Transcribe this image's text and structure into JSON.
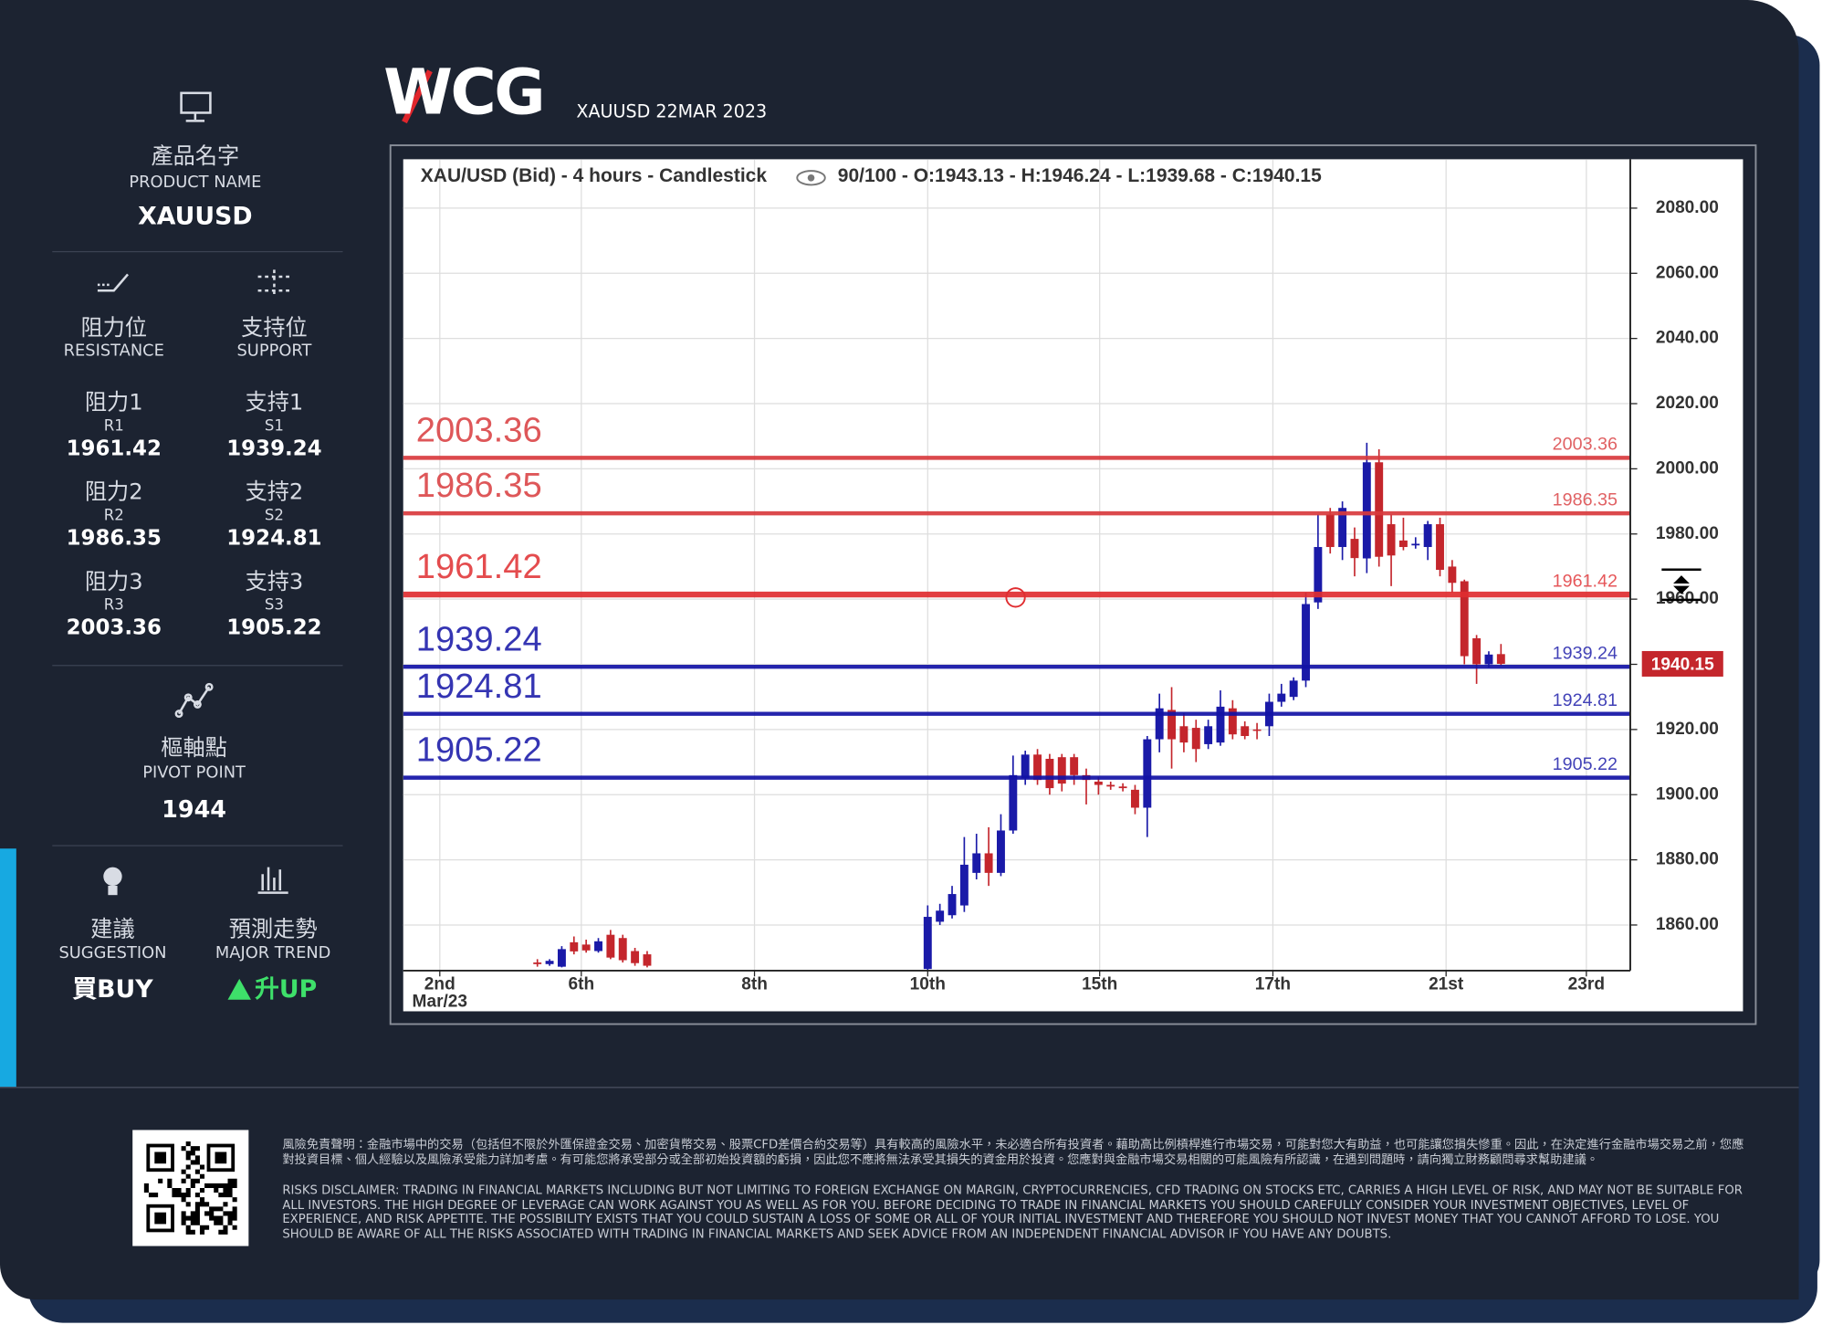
{
  "header": {
    "logo": "WCG",
    "subtitle": "XAUUSD 22MAR 2023"
  },
  "product": {
    "label_zh": "產品名字",
    "label_en": "PRODUCT NAME",
    "value": "XAUUSD"
  },
  "resistance": {
    "label_zh": "阻力位",
    "label_en": "RESISTANCE",
    "items": [
      {
        "label_zh": "阻力1",
        "code": "R1",
        "value": "1961.42"
      },
      {
        "label_zh": "阻力2",
        "code": "R2",
        "value": "1986.35"
      },
      {
        "label_zh": "阻力3",
        "code": "R3",
        "value": "2003.36"
      }
    ]
  },
  "support": {
    "label_zh": "支持位",
    "label_en": "SUPPORT",
    "items": [
      {
        "label_zh": "支持1",
        "code": "S1",
        "value": "1939.24"
      },
      {
        "label_zh": "支持2",
        "code": "S2",
        "value": "1924.81"
      },
      {
        "label_zh": "支持3",
        "code": "S3",
        "value": "1905.22"
      }
    ]
  },
  "pivot": {
    "label_zh": "樞軸點",
    "label_en": "PIVOT POINT",
    "value": "1944"
  },
  "suggestion": {
    "label_zh": "建議",
    "label_en": "SUGGESTION",
    "value": "買BUY"
  },
  "trend": {
    "label_zh": "預測走勢",
    "label_en": "MAJOR TREND",
    "value": "升UP"
  },
  "disclaimer": {
    "zh": "風險免責聲明：金融市場中的交易（包括但不限於外匯保證金交易、加密貨幣交易、股票CFD差價合約交易等）具有較高的風險水平，未必適合所有投資者。藉助高比例槓桿進行市場交易，可能對您大有助益，也可能讓您損失慘重。因此，在決定進行金融市場交易之前，您應對投資目標、個人經驗以及風險承受能力詳加考慮。有可能您將承受部分或全部初始投資額的虧損，因此您不應將無法承受其損失的資金用於投資。您應對與金融市場交易相關的可能風險有所認識，在遇到問題時，請向獨立財務顧問尋求幫助建議。",
    "en": "RISKS DISCLAIMER: TRADING IN FINANCIAL MARKETS INCLUDING BUT NOT LIMITING TO FOREIGN EXCHANGE ON MARGIN, CRYPTOCURRENCIES, CFD TRADING ON STOCKS ETC, CARRIES A HIGH LEVEL OF RISK, AND MAY NOT BE SUITABLE FOR ALL INVESTORS. THE HIGH DEGREE OF LEVERAGE CAN WORK AGAINST YOU AS WELL AS FOR YOU. BEFORE DECIDING TO TRADE IN FINANCIAL MARKETS YOU SHOULD CAREFULLY CONSIDER YOUR INVESTMENT OBJECTIVES, LEVEL OF EXPERIENCE, AND RISK APPETITE. THE POSSIBILITY EXISTS THAT YOU COULD SUSTAIN A LOSS OF SOME OR ALL OF YOUR INITIAL INVESTMENT AND THEREFORE YOU SHOULD NOT INVEST MONEY THAT YOU CANNOT AFFORD TO LOSE. YOU SHOULD BE AWARE OF ALL THE RISKS ASSOCIATED WITH TRADING IN FINANCIAL MARKETS AND SEEK ADVICE FROM AN INDEPENDENT FINANCIAL ADVISOR IF YOU HAVE ANY DOUBTS."
  },
  "chart_data": {
    "type": "candlestick",
    "title": "XAU/USD (Bid) - 4 hours - Candlestick",
    "subtitle": "90/100 - O:1943.13 - H:1946.24 - L:1939.68 - C:1940.15",
    "up_color": "#1a1aa8",
    "down_color": "#c4262c",
    "grid": true,
    "xlim": [
      0,
      100.6
    ],
    "xticks": [
      {
        "value": 3,
        "label": "2nd\nMar/23"
      },
      {
        "value": 14.6,
        "label": "6th"
      },
      {
        "value": 28.8,
        "label": "8th"
      },
      {
        "value": 43,
        "label": "10th"
      },
      {
        "value": 57.1,
        "label": "15th"
      },
      {
        "value": 71.3,
        "label": "17th"
      },
      {
        "value": 85.5,
        "label": "21st"
      },
      {
        "value": 97,
        "label": "23rd"
      }
    ],
    "ylim": [
      1846,
      2095
    ],
    "yticks": [
      {
        "value": 1860,
        "label": "1860.00"
      },
      {
        "value": 1880,
        "label": "1880.00"
      },
      {
        "value": 1900,
        "label": "1900.00"
      },
      {
        "value": 1920,
        "label": "1920.00"
      },
      {
        "value": 1940,
        "label": "1940.00"
      },
      {
        "value": 1960,
        "label": "1960.00"
      },
      {
        "value": 1980,
        "label": "1980.00"
      },
      {
        "value": 2000,
        "label": "2000.00"
      },
      {
        "value": 2020,
        "label": "2020.00"
      },
      {
        "value": 2040,
        "label": "2040.00"
      },
      {
        "value": 2060,
        "label": "2060.00"
      },
      {
        "value": 2080,
        "label": "2080.00"
      }
    ],
    "levels": [
      {
        "value": 2003.36,
        "color": "#d93a3d"
      },
      {
        "value": 1986.35,
        "color": "#d93a3d"
      },
      {
        "value": 1961.42,
        "color": "#e02d30"
      },
      {
        "value": 1939.24,
        "color": "#1212a6"
      },
      {
        "value": 1924.81,
        "color": "#1212a6"
      },
      {
        "value": 1905.22,
        "color": "#1212a6"
      }
    ],
    "x": [
      11,
      12,
      13,
      14,
      15,
      16,
      17,
      18,
      19,
      20,
      43,
      44,
      45,
      46,
      47,
      48,
      49,
      50,
      51,
      52,
      53,
      54,
      55,
      56,
      57,
      58,
      59,
      60,
      61,
      62,
      63,
      64,
      65,
      66,
      67,
      68,
      69,
      70,
      71,
      72,
      73,
      74,
      75,
      76,
      77,
      78,
      79,
      80,
      81,
      82,
      83,
      84,
      85,
      86,
      87,
      88,
      89,
      90
    ],
    "open": [
      1848.5,
      1848,
      1847.2,
      1854.7,
      1854,
      1852,
      1857,
      1856,
      1852,
      1851,
      1846.5,
      1861,
      1863,
      1866,
      1876,
      1882,
      1876,
      1889,
      1905,
      1912.3,
      1911,
      1911.5,
      1911.5,
      1906,
      1904,
      1903,
      1902.5,
      1901.5,
      1896,
      1917,
      1926,
      1921,
      1920.5,
      1915.5,
      1916,
      1926.5,
      1921,
      1920,
      1921,
      1928.5,
      1930,
      1935,
      1959,
      1986,
      1976,
      1978.5,
      1972.5,
      2002,
      1983,
      1978,
      1976.5,
      1976,
      1983,
      1970,
      1965.5,
      1948,
      1940,
      1943.13
    ],
    "high": [
      1849.5,
      1849.5,
      1853.5,
      1856.5,
      1855.5,
      1856,
      1858.5,
      1857,
      1853,
      1852,
      1866,
      1866.5,
      1872,
      1887,
      1888,
      1890,
      1894,
      1912,
      1913.5,
      1914,
      1912.5,
      1912.5,
      1912.5,
      1908,
      1905.5,
      1904,
      1903.5,
      1903,
      1918,
      1931,
      1933,
      1925,
      1923,
      1923,
      1932,
      1929,
      1922.5,
      1922,
      1931,
      1934,
      1936,
      1962,
      1986,
      1988,
      1990,
      1982,
      2008,
      2006,
      1986,
      1985,
      1979,
      1984,
      1985,
      1972,
      1966,
      1949,
      1944,
      1946.24
    ],
    "low": [
      1847.2,
      1847.5,
      1847,
      1851,
      1851.5,
      1851.5,
      1849.5,
      1848.5,
      1847.5,
      1847,
      1846.2,
      1860,
      1862,
      1864,
      1874,
      1872,
      1875,
      1888,
      1903,
      1903,
      1900,
      1901,
      1903,
      1897,
      1900,
      1901.5,
      1901,
      1894,
      1887,
      1913,
      1908,
      1913,
      1910,
      1914,
      1915,
      1917,
      1917,
      1917,
      1918,
      1927,
      1929,
      1933,
      1957,
      1974,
      1972,
      1967,
      1968,
      1970,
      1964,
      1975,
      1975.5,
      1972,
      1967,
      1962,
      1940,
      1934,
      1939,
      1939.68
    ],
    "close": [
      1848,
      1849,
      1852.6,
      1851.9,
      1852.2,
      1855,
      1850,
      1849.2,
      1848.3,
      1847.5,
      1862.5,
      1864.4,
      1869.5,
      1878.5,
      1882,
      1876,
      1889,
      1906,
      1912.3,
      1904.5,
      1902,
      1903.4,
      1906,
      1904.5,
      1903,
      1902.5,
      1902,
      1896,
      1917,
      1926.5,
      1917,
      1916,
      1914,
      1921,
      1927,
      1918.5,
      1918,
      1919.7,
      1928.5,
      1931,
      1935,
      1958.5,
      1976,
      1976,
      1988,
      1972.6,
      2002,
      1973,
      1973.4,
      1976,
      1977,
      1983,
      1969,
      1965,
      1942.5,
      1940,
      1943,
      1940.15
    ]
  }
}
